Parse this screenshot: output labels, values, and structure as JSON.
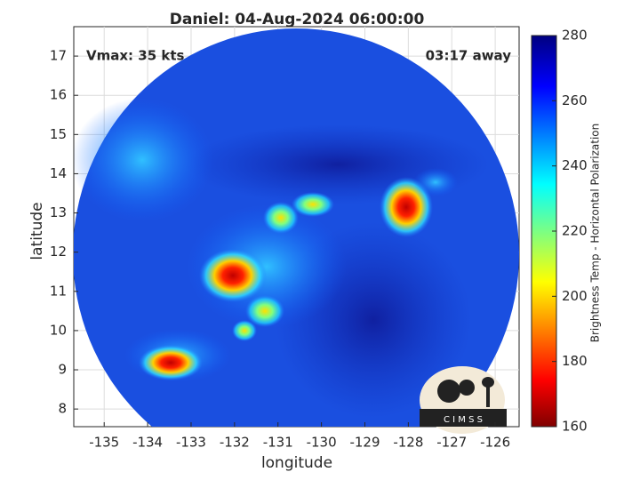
{
  "chart_data": {
    "type": "map",
    "title": "Daniel: 04-Aug-2024 06:00:00",
    "xlabel": "longitude",
    "ylabel": "latitude",
    "xlim": [
      -135.7,
      -125.45
    ],
    "ylim": [
      7.55,
      17.75
    ],
    "xticks": [
      -135,
      -134,
      -133,
      -132,
      -131,
      -130,
      -129,
      -128,
      -127,
      -126
    ],
    "yticks": [
      8,
      9,
      10,
      11,
      12,
      13,
      14,
      15,
      16,
      17
    ],
    "grid": true,
    "annotations": [
      "Vmax: 35 kts",
      "03:17 away"
    ],
    "colorbar": {
      "label": "Brightness Temp - Horizontal Polarization",
      "clim": [
        160,
        280
      ],
      "ticks": [
        160,
        180,
        200,
        220,
        240,
        260,
        280
      ]
    },
    "logo": "C I M S S"
  }
}
